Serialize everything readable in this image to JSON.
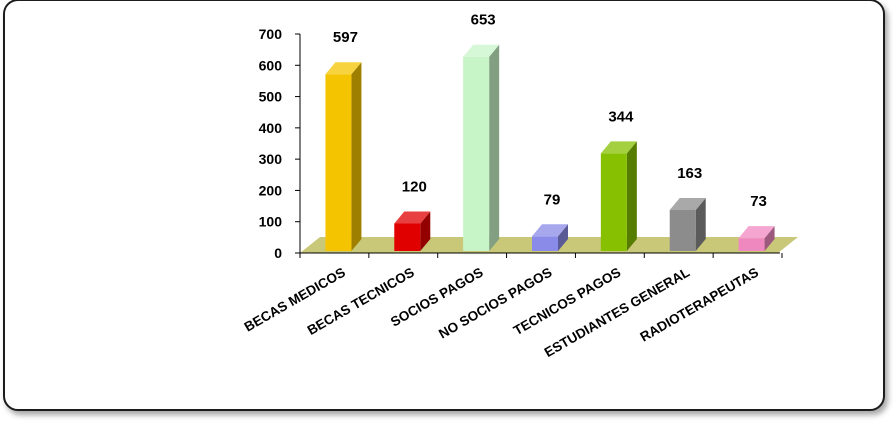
{
  "chart_data": {
    "type": "bar",
    "title": "",
    "xlabel": "",
    "ylabel": "",
    "categories": [
      "BECAS MEDICOS",
      "BECAS TECNICOS",
      "SOCIOS PAGOS",
      "NO SOCIOS PAGOS",
      "TECNICOS PAGOS",
      "ESTUDIANTES GENERAL",
      "RADIOTERAPEUTAS"
    ],
    "values": [
      597,
      120,
      653,
      79,
      344,
      163,
      73
    ],
    "ylim": [
      0,
      700
    ],
    "yticks": [
      0,
      100,
      200,
      300,
      400,
      500,
      600,
      700
    ],
    "grid": false,
    "legend": "none",
    "colors": [
      "#f5c400",
      "#e00000",
      "#c8f5c8",
      "#8a8ae8",
      "#86c000",
      "#8c8c8c",
      "#f088c0"
    ],
    "floor_color": "#c8c878"
  }
}
